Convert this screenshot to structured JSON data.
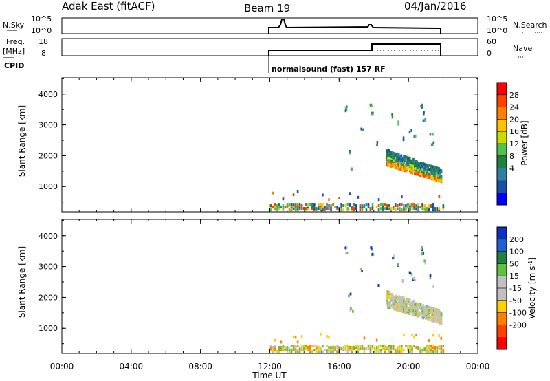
{
  "header": {
    "station": "Adak East (fitACF)",
    "beam": "Beam 19",
    "date": "04/Jan/2016"
  },
  "top_panels": {
    "nsky_label": "N.Sky",
    "nsky_ticks": [
      "10^5",
      "10^0"
    ],
    "nsky_right_ticks": [
      "10^5",
      "10^0"
    ],
    "nsearch_label": "N.Search",
    "freq_label_1": "Freq.",
    "freq_label_2": "[MHz]",
    "freq_ticks": [
      "18",
      "8"
    ],
    "nave_ticks": [
      "60",
      "0"
    ],
    "nave_label": "Nave",
    "cpid_label": "CPID",
    "cpid_text": "normalsound (fast) 157 RF"
  },
  "chart_data": [
    {
      "type": "heatmap",
      "name": "power-panel",
      "xlabel": "",
      "ylabel": "Slant Range [km]",
      "x_ticks": [
        "00:00",
        "04:00",
        "08:00",
        "12:00",
        "16:00",
        "20:00",
        "00:00"
      ],
      "x_tick_hours": [
        0,
        4,
        8,
        12,
        16,
        20,
        24
      ],
      "y_ticks": [
        1000,
        2000,
        3000,
        4000
      ],
      "ylim": [
        180,
        4530
      ],
      "xlim": [
        0,
        24
      ],
      "colorbar_label": "Power [dB]",
      "colorbar_ticks": [
        "28",
        "24",
        "20",
        "16",
        "12",
        "8",
        "4"
      ],
      "colorbar_colors": [
        "#ff0000",
        "#ff4000",
        "#ff8000",
        "#ffc000",
        "#c8dc00",
        "#50c050",
        "#208040",
        "#3080a0",
        "#1850a8",
        "#0000ff"
      ]
    },
    {
      "type": "heatmap",
      "name": "velocity-panel",
      "xlabel": "Time UT",
      "ylabel": "Slant Range [km]",
      "x_ticks": [
        "00:00",
        "04:00",
        "08:00",
        "12:00",
        "16:00",
        "20:00",
        "00:00"
      ],
      "x_tick_hours": [
        0,
        4,
        8,
        12,
        16,
        20,
        24
      ],
      "y_ticks": [
        1000,
        2000,
        3000,
        4000
      ],
      "ylim": [
        180,
        4530
      ],
      "xlim": [
        0,
        24
      ],
      "colorbar_label": "Velocity [m s-1]",
      "colorbar_ticks": [
        "200",
        "100",
        "50",
        "15",
        "-15",
        "-50",
        "-100",
        "-200"
      ],
      "colorbar_colors": [
        "#1030c0",
        "#2060d0",
        "#208040",
        "#60c040",
        "#c0c0c0",
        "#c0c0c0",
        "#ffd000",
        "#ff8000",
        "#ff4000",
        "#ff0000"
      ]
    }
  ]
}
